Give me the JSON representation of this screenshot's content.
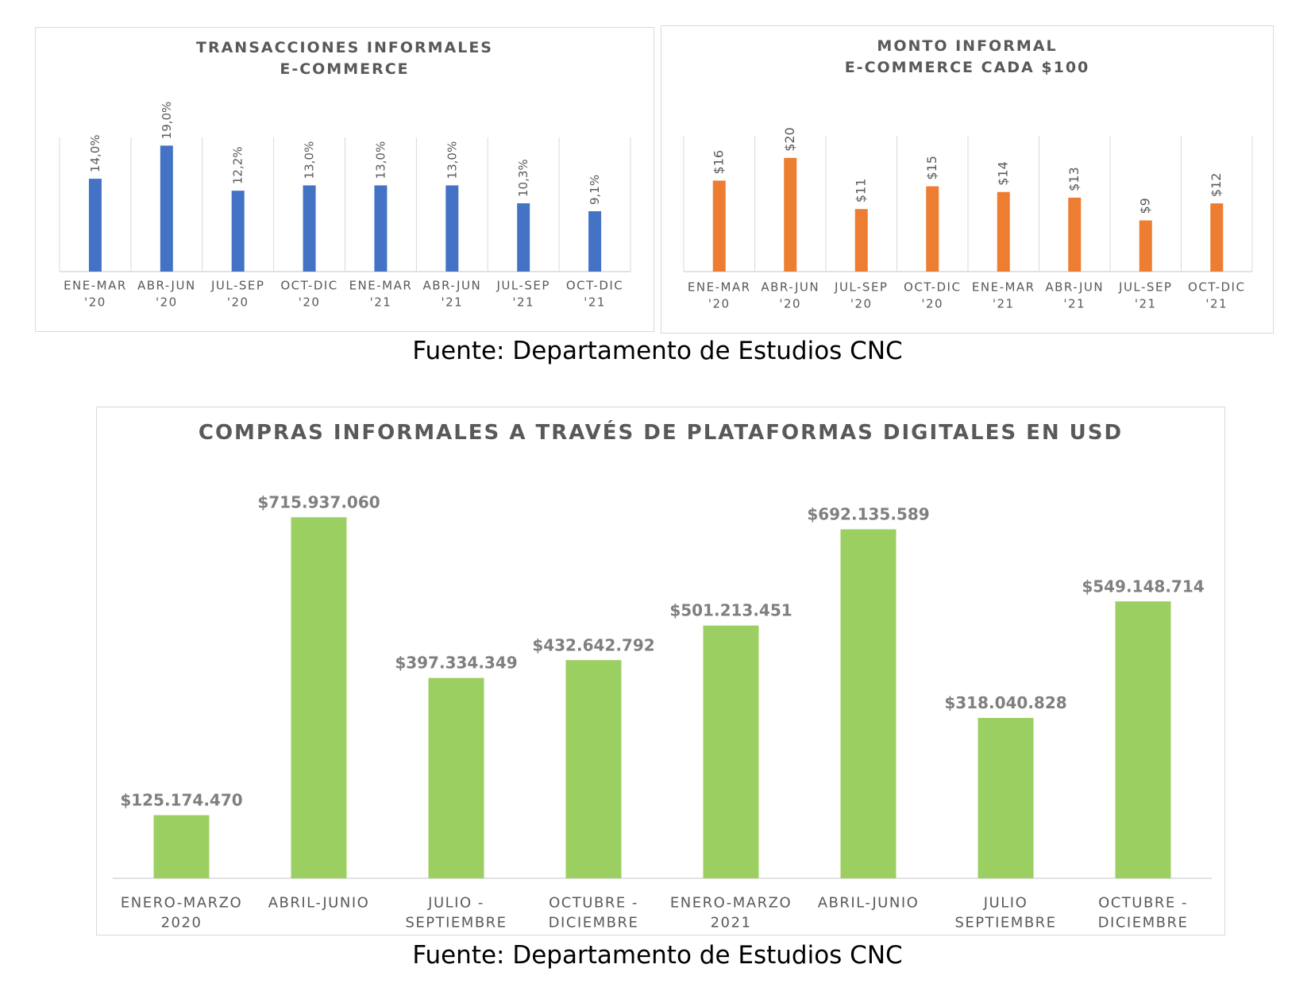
{
  "source_top": "Fuente: Departamento de Estudios CNC",
  "source_bottom": "Fuente: Departamento de Estudios CNC",
  "chart_data": [
    {
      "type": "bar",
      "title": "TRANSACCIONES  INFORMALES\nE-COMMERCE",
      "categories": [
        "ENE-MAR\n'20",
        "ABR-JUN\n'20",
        "JUL-SEP\n'20",
        "OCT-DIC\n'20",
        "ENE-MAR\n'21",
        "ABR-JUN\n'21",
        "JUL-SEP\n'21",
        "OCT-DIC\n'21"
      ],
      "values": [
        14.0,
        19.0,
        12.2,
        13.0,
        13.0,
        13.0,
        10.3,
        9.1
      ],
      "labels": [
        "14,0%",
        "19,0%",
        "12,2%",
        "13,0%",
        "13,0%",
        "13,0%",
        "10,3%",
        "9,1%"
      ],
      "ylim": [
        0,
        20
      ],
      "grid": "vertical",
      "color": "#4472c4"
    },
    {
      "type": "bar",
      "title": "MONTO  INFORMAL\nE-COMMERCE CADA $100",
      "categories": [
        "ENE-MAR\n'20",
        "ABR-JUN\n'20",
        "JUL-SEP\n'20",
        "OCT-DIC\n'20",
        "ENE-MAR\n'21",
        "ABR-JUN\n'21",
        "JUL-SEP\n'21",
        "OCT-DIC\n'21"
      ],
      "values": [
        16,
        20,
        11,
        15,
        14,
        13,
        9,
        12
      ],
      "labels": [
        "$16",
        "$20",
        "$11",
        "$15",
        "$14",
        "$13",
        "$9",
        "$12"
      ],
      "ylim": [
        0,
        25
      ],
      "grid": "vertical",
      "color": "#ed7d31"
    },
    {
      "type": "bar",
      "title": "COMPRAS INFORMALES A TRAVÉS DE PLATAFORMAS DIGITALES EN USD",
      "categories": [
        "ENERO-MARZO\n2020",
        "ABRIL-JUNIO",
        "JULIO -\nSEPTIEMBRE",
        "OCTUBRE -\nDICIEMBRE",
        "ENERO-MARZO\n2021",
        "ABRIL-JUNIO",
        "JULIO\nSEPTIEMBRE",
        "OCTUBRE -\nDICIEMBRE"
      ],
      "values": [
        125174470,
        715937060,
        397334349,
        432642792,
        501213451,
        692135589,
        318040828,
        549148714
      ],
      "labels": [
        "$125.174.470",
        "$715.937.060",
        "$397.334.349",
        "$432.642.792",
        "$501.213.451",
        "$692.135.589",
        "$318.040.828",
        "$549.148.714"
      ],
      "ylim": [
        0,
        800000000
      ],
      "grid": "none",
      "color": "#9ccf62"
    }
  ]
}
